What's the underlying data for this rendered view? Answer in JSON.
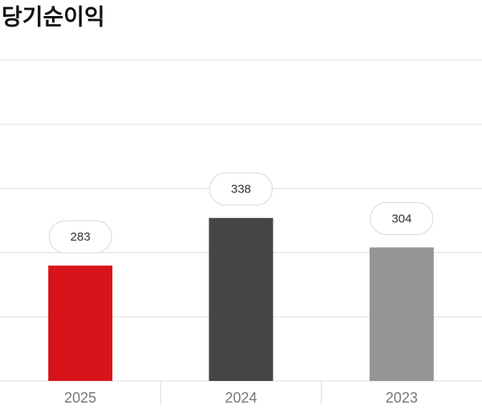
{
  "chart_data": {
    "type": "bar",
    "title": "당기순이익",
    "categories": [
      "2025",
      "2024",
      "2023"
    ],
    "values": [
      283,
      338,
      304
    ],
    "colors": [
      "#d7141a",
      "#454545",
      "#959595"
    ],
    "ylim": [
      150,
      520
    ],
    "yticks": [
      150,
      224,
      298,
      372,
      446,
      520
    ],
    "grid": true
  }
}
